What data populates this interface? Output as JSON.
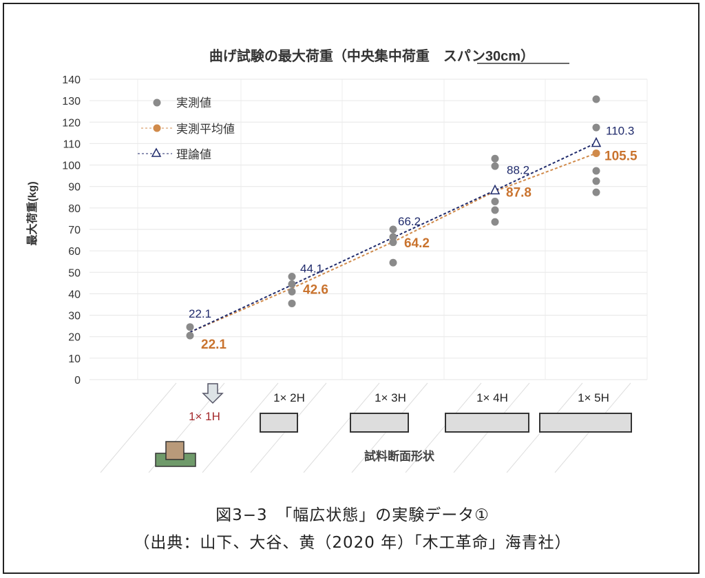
{
  "chart_data": {
    "type": "scatter",
    "title": "曲げ試験の最大荷重（中央集中荷重　スパン30cm）",
    "ylabel": "最大荷重(kg)",
    "xlabel": "試料断面形状",
    "ylim": [
      0,
      140
    ],
    "yticks": [
      0,
      10,
      20,
      30,
      40,
      50,
      60,
      70,
      80,
      90,
      100,
      110,
      120,
      130,
      140
    ],
    "grid": true,
    "legend_position": "top-left",
    "categories": [
      "1× 1H",
      "1× 2H",
      "1× 3H",
      "1× 4H",
      "1× 5H"
    ],
    "series": [
      {
        "name": "実測値",
        "type": "scatter",
        "color": "#8a8a8a",
        "values": [
          [
            24.5,
            20.5
          ],
          [
            48,
            44.5,
            41,
            35.5
          ],
          [
            70,
            66.5,
            64,
            54.5
          ],
          [
            103,
            99.5,
            83,
            79,
            73.5
          ],
          [
            130.7,
            117.5,
            97.3,
            92.5,
            87.3
          ]
        ]
      },
      {
        "name": "実測平均値",
        "type": "line",
        "color": "#d08a4a",
        "label_color": "#c9732e",
        "values": [
          22.1,
          42.6,
          64.2,
          87.8,
          105.5
        ],
        "labels": [
          "22.1",
          "42.6",
          "64.2",
          "87.8",
          "105.5"
        ]
      },
      {
        "name": "理論値",
        "type": "line",
        "color": "#1f2a6b",
        "values": [
          22.1,
          44.1,
          66.2,
          88.2,
          110.3
        ],
        "labels": [
          "22.1",
          "44.1",
          "66.2",
          "88.2",
          "110.3"
        ]
      }
    ]
  },
  "caption": {
    "line1": "図3−3　「幅広状態」の実験データ①",
    "line2": "（出典：山下、大谷、黄（2020 年）「木工革命」海青社）"
  }
}
